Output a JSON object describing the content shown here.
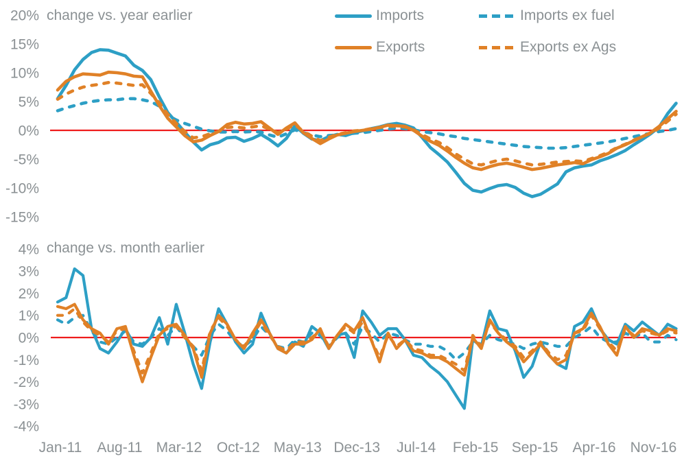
{
  "page": {
    "background": "#ffffff",
    "accent_red": "#ee1c1c",
    "blue": "#2d9fc5",
    "orange": "#e08127",
    "text_gray": "#8b9194"
  },
  "legend": {
    "items": [
      {
        "label": "Imports",
        "color": "#2d9fc5",
        "dash": false
      },
      {
        "label": "Imports ex fuel",
        "color": "#2d9fc5",
        "dash": true
      },
      {
        "label": "Exports",
        "color": "#e08127",
        "dash": false
      },
      {
        "label": "Exports ex Ags",
        "color": "#e08127",
        "dash": true
      }
    ]
  },
  "chart_data": [
    {
      "type": "line",
      "title": "change vs. year earlier",
      "unit": "%",
      "ylim": [
        -15,
        20
      ],
      "y_ticks": [
        20,
        15,
        10,
        5,
        0,
        -5,
        -10,
        -15
      ],
      "grid": false,
      "zero_line_color": "#ee1c1c",
      "legend_position": "top-right",
      "x_tick_labels": [
        "Jan-11",
        "Aug-11",
        "Mar-12",
        "Oct-12",
        "May-13",
        "Dec-13",
        "Jul-14",
        "Feb-15",
        "Sep-15",
        "Apr-16",
        "Nov-16"
      ],
      "x_tick_indices": [
        0,
        7,
        14,
        21,
        28,
        35,
        42,
        49,
        56,
        63,
        70
      ],
      "n_points": 74,
      "x_span": "Jan-2011 through Feb-2017, monthly",
      "series": [
        {
          "name": "Imports",
          "color": "#2d9fc5",
          "dash": false,
          "values": [
            5.5,
            7.8,
            10.5,
            12.3,
            13.5,
            14.0,
            13.9,
            13.4,
            12.9,
            11.3,
            10.4,
            8.8,
            5.8,
            3.1,
            1.4,
            -0.3,
            -2.0,
            -3.4,
            -2.5,
            -2.1,
            -1.3,
            -1.2,
            -1.9,
            -1.4,
            -0.7,
            -1.6,
            -2.7,
            -1.4,
            0.8,
            -0.5,
            -1.5,
            -1.8,
            -1.1,
            -0.7,
            -0.9,
            -0.4,
            -0.1,
            0.3,
            0.6,
            1.0,
            1.2,
            0.9,
            0.4,
            -1.2,
            -3.0,
            -4.2,
            -5.5,
            -7.3,
            -9.2,
            -10.4,
            -10.7,
            -10.1,
            -9.6,
            -9.4,
            -9.9,
            -10.9,
            -11.5,
            -11.1,
            -10.2,
            -9.3,
            -7.2,
            -6.5,
            -6.2,
            -6.0,
            -5.3,
            -4.8,
            -4.2,
            -3.5,
            -2.5,
            -1.6,
            -0.6,
            0.6,
            2.9,
            4.7
          ]
        },
        {
          "name": "Imports ex fuel",
          "color": "#2d9fc5",
          "dash": true,
          "values": [
            3.4,
            3.9,
            4.3,
            4.7,
            5.0,
            5.2,
            5.3,
            5.3,
            5.5,
            5.5,
            5.3,
            5.0,
            4.2,
            2.6,
            1.8,
            1.2,
            0.7,
            0.2,
            -0.1,
            -0.3,
            -0.3,
            -0.2,
            -0.3,
            -0.2,
            -0.3,
            -0.8,
            -1.2,
            -0.6,
            0.1,
            -0.4,
            -0.8,
            -1.1,
            -0.9,
            -0.8,
            -0.7,
            -0.5,
            -0.4,
            -0.2,
            0.0,
            0.2,
            0.4,
            0.3,
            0.1,
            -0.2,
            -0.4,
            -0.6,
            -0.9,
            -1.1,
            -1.4,
            -1.6,
            -1.8,
            -2.0,
            -2.2,
            -2.4,
            -2.6,
            -2.8,
            -2.9,
            -3.0,
            -3.1,
            -3.1,
            -3.0,
            -2.8,
            -2.6,
            -2.4,
            -2.2,
            -2.0,
            -1.7,
            -1.4,
            -1.1,
            -0.8,
            -0.5,
            -0.2,
            0.0,
            0.3
          ]
        },
        {
          "name": "Exports",
          "color": "#e08127",
          "dash": false,
          "values": [
            7.0,
            8.5,
            9.3,
            9.8,
            9.7,
            9.6,
            10.1,
            10.0,
            9.8,
            9.4,
            9.3,
            6.8,
            4.3,
            2.1,
            0.6,
            -0.9,
            -2.0,
            -1.7,
            -0.9,
            -0.2,
            1.0,
            1.4,
            1.1,
            1.2,
            1.5,
            0.4,
            -0.7,
            0.4,
            1.3,
            -0.4,
            -1.4,
            -2.3,
            -1.5,
            -0.8,
            -0.5,
            -0.2,
            0.0,
            0.2,
            0.5,
            0.9,
            0.8,
            0.7,
            0.0,
            -1.0,
            -1.9,
            -2.6,
            -3.6,
            -4.7,
            -5.7,
            -6.5,
            -6.8,
            -6.3,
            -5.9,
            -5.7,
            -6.0,
            -6.4,
            -6.8,
            -6.6,
            -6.3,
            -6.0,
            -5.8,
            -5.6,
            -5.8,
            -5.1,
            -4.6,
            -4.0,
            -3.1,
            -2.5,
            -1.8,
            -1.1,
            -0.4,
            0.7,
            2.0,
            3.3
          ]
        },
        {
          "name": "Exports ex Ags",
          "color": "#e08127",
          "dash": true,
          "values": [
            5.4,
            6.3,
            7.0,
            7.5,
            7.8,
            8.0,
            8.3,
            8.2,
            8.0,
            7.8,
            7.9,
            6.4,
            4.8,
            2.8,
            1.2,
            -0.2,
            -1.3,
            -1.1,
            -0.6,
            -0.2,
            0.5,
            0.6,
            0.4,
            0.6,
            0.8,
            0.2,
            -0.4,
            0.2,
            1.0,
            -0.2,
            -1.0,
            -1.8,
            -1.2,
            -0.7,
            -0.4,
            -0.1,
            0.0,
            0.3,
            0.5,
            0.7,
            0.7,
            0.6,
            0.1,
            -0.7,
            -1.5,
            -2.1,
            -3.0,
            -4.1,
            -5.0,
            -5.8,
            -6.0,
            -5.6,
            -5.2,
            -5.0,
            -5.3,
            -5.7,
            -6.0,
            -5.9,
            -5.7,
            -5.5,
            -5.4,
            -5.3,
            -5.4,
            -4.9,
            -4.4,
            -3.8,
            -3.0,
            -2.4,
            -1.7,
            -1.1,
            -0.5,
            0.4,
            1.6,
            2.8
          ]
        }
      ]
    },
    {
      "type": "line",
      "title": "change vs. month earlier",
      "unit": "%",
      "ylim": [
        -4,
        4
      ],
      "y_ticks": [
        4,
        3,
        2,
        1,
        0,
        -1,
        -2,
        -3,
        -4
      ],
      "grid": false,
      "zero_line_color": "#ee1c1c",
      "x_tick_labels": [
        "Jan-11",
        "Aug-11",
        "Mar-12",
        "Oct-12",
        "May-13",
        "Dec-13",
        "Jul-14",
        "Feb-15",
        "Sep-15",
        "Apr-16",
        "Nov-16"
      ],
      "x_tick_indices": [
        0,
        7,
        14,
        21,
        28,
        35,
        42,
        49,
        56,
        63,
        70
      ],
      "n_points": 74,
      "x_span": "Jan-2011 through Feb-2017, monthly",
      "series": [
        {
          "name": "Imports",
          "color": "#2d9fc5",
          "dash": false,
          "values": [
            1.6,
            1.8,
            3.1,
            2.8,
            0.4,
            -0.5,
            -0.7,
            -0.2,
            0.4,
            -0.3,
            -0.4,
            0.0,
            0.9,
            -0.3,
            1.5,
            0.2,
            -1.2,
            -2.3,
            -0.2,
            1.3,
            0.6,
            -0.2,
            -0.7,
            -0.3,
            1.1,
            0.2,
            -0.5,
            -0.7,
            -0.2,
            -0.4,
            0.5,
            0.2,
            -0.5,
            0.1,
            0.2,
            -0.9,
            1.2,
            0.7,
            0.1,
            0.4,
            0.4,
            -0.1,
            -0.8,
            -0.9,
            -1.3,
            -1.6,
            -2.0,
            -2.6,
            -3.2,
            -0.1,
            -0.4,
            1.2,
            0.4,
            0.3,
            -0.6,
            -1.8,
            -1.3,
            -0.2,
            -0.8,
            -1.2,
            -1.4,
            0.5,
            0.7,
            1.3,
            0.4,
            -0.1,
            -0.3,
            0.6,
            0.3,
            0.7,
            0.4,
            0.1,
            0.6,
            0.4
          ]
        },
        {
          "name": "Imports ex fuel",
          "color": "#2d9fc5",
          "dash": true,
          "values": [
            0.8,
            0.6,
            0.9,
            1.0,
            0.3,
            -0.2,
            -0.3,
            0.0,
            0.3,
            -0.2,
            -0.3,
            0.0,
            0.4,
            0.1,
            0.5,
            0.0,
            -0.4,
            -0.8,
            0.1,
            0.6,
            0.3,
            -0.2,
            -0.4,
            -0.1,
            0.5,
            0.1,
            -0.4,
            -0.5,
            -0.1,
            -0.2,
            0.2,
            0.1,
            -0.4,
            0.0,
            0.2,
            -0.3,
            0.5,
            0.2,
            -0.2,
            0.2,
            0.1,
            -0.1,
            -0.3,
            -0.3,
            -0.4,
            -0.4,
            -0.6,
            -1.0,
            -0.7,
            -0.2,
            -0.3,
            0.1,
            -0.1,
            -0.2,
            -0.3,
            -0.5,
            -0.3,
            -0.2,
            -0.3,
            -0.4,
            -0.4,
            0.0,
            0.2,
            0.5,
            0.0,
            -0.2,
            -0.2,
            0.2,
            0.0,
            0.2,
            -0.2,
            -0.2,
            0.1,
            -0.1
          ]
        },
        {
          "name": "Exports",
          "color": "#e08127",
          "dash": false,
          "values": [
            1.4,
            1.3,
            1.5,
            0.8,
            0.4,
            0.2,
            -0.3,
            0.4,
            0.5,
            -0.8,
            -2.0,
            -0.9,
            0.1,
            0.5,
            0.6,
            0.1,
            -0.5,
            -1.8,
            0.2,
            1.0,
            0.6,
            -0.1,
            -0.5,
            0.2,
            0.8,
            0.2,
            -0.5,
            -0.7,
            -0.3,
            -0.3,
            -0.1,
            0.4,
            -0.5,
            0.1,
            0.6,
            0.3,
            0.9,
            -0.1,
            -1.1,
            0.2,
            -0.5,
            -0.1,
            -0.6,
            -0.7,
            -0.9,
            -0.9,
            -1.1,
            -1.4,
            -1.7,
            0.0,
            -0.5,
            0.8,
            0.2,
            -0.2,
            -0.5,
            -1.1,
            -0.7,
            -0.3,
            -0.8,
            -1.2,
            -1.0,
            0.2,
            0.4,
            1.1,
            0.5,
            -0.3,
            -0.8,
            0.5,
            0.0,
            0.4,
            0.3,
            0.1,
            0.4,
            0.3
          ]
        },
        {
          "name": "Exports ex Ags",
          "color": "#e08127",
          "dash": true,
          "values": [
            1.0,
            1.0,
            1.3,
            0.7,
            0.3,
            0.1,
            -0.2,
            0.3,
            0.4,
            -0.6,
            -1.6,
            -0.7,
            0.2,
            0.4,
            0.5,
            0.0,
            -0.4,
            -1.5,
            0.3,
            0.9,
            0.5,
            -0.1,
            -0.4,
            0.1,
            0.7,
            0.1,
            -0.4,
            -0.6,
            -0.2,
            -0.2,
            0.0,
            0.3,
            -0.4,
            0.1,
            0.5,
            0.2,
            0.7,
            -0.1,
            -0.9,
            0.1,
            -0.4,
            -0.1,
            -0.5,
            -0.6,
            -0.8,
            -0.8,
            -1.0,
            -1.2,
            -1.5,
            0.1,
            -0.4,
            0.7,
            0.2,
            -0.1,
            -0.4,
            -0.9,
            -0.6,
            -0.2,
            -0.7,
            -1.0,
            -0.8,
            0.2,
            0.3,
            1.0,
            0.4,
            -0.2,
            -0.6,
            0.4,
            0.1,
            0.3,
            0.2,
            0.1,
            0.3,
            0.2
          ]
        }
      ]
    }
  ]
}
